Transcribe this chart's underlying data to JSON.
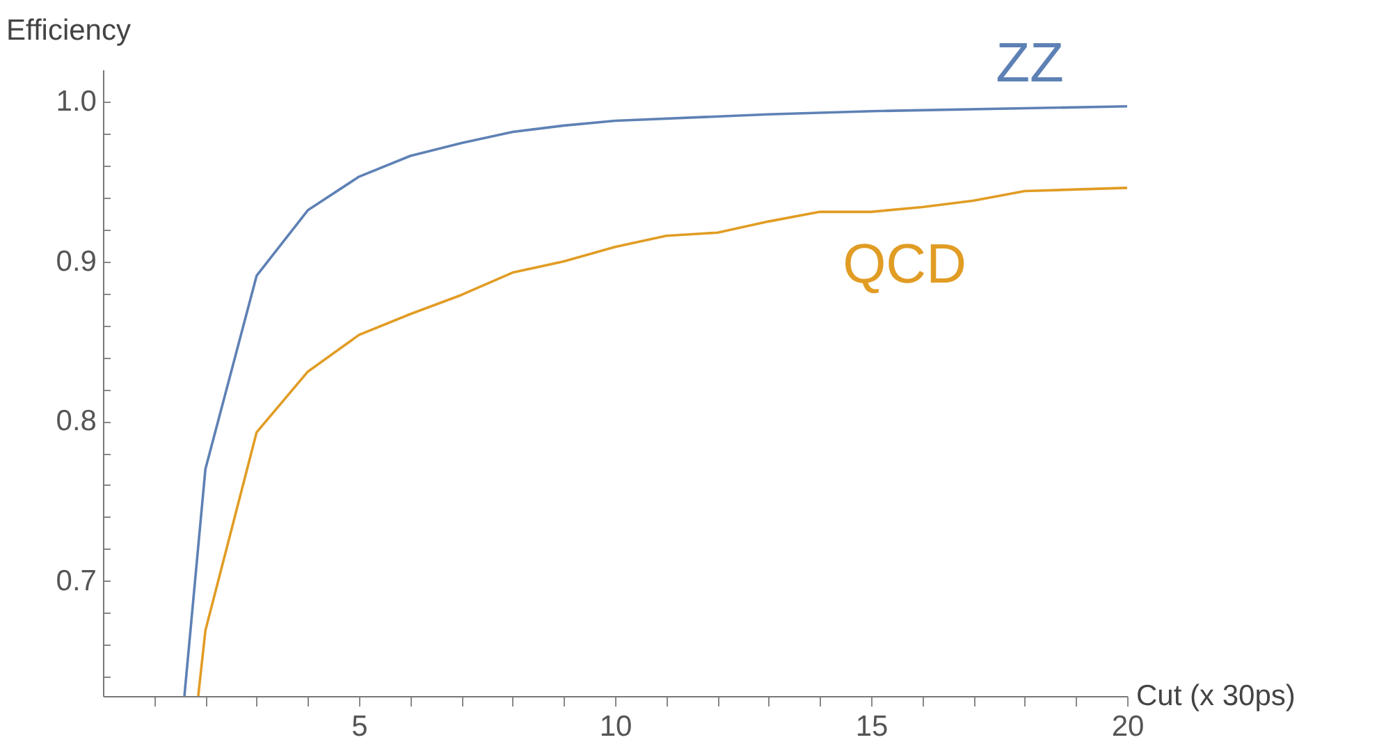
{
  "chart_data": {
    "type": "line",
    "xlabel": "Cut (x 30ps)",
    "ylabel": "Efficiency",
    "xlim": [
      0,
      20
    ],
    "ylim": [
      0.628,
      1.02
    ],
    "xticks": [
      {
        "value": 1,
        "label": null
      },
      {
        "value": 2,
        "label": null
      },
      {
        "value": 3,
        "label": null
      },
      {
        "value": 4,
        "label": null
      },
      5,
      {
        "value": 6,
        "label": null
      },
      {
        "value": 7,
        "label": null
      },
      {
        "value": 8,
        "label": null
      },
      {
        "value": 9,
        "label": null
      },
      10,
      {
        "value": 11,
        "label": null
      },
      {
        "value": 12,
        "label": null
      },
      {
        "value": 13,
        "label": null
      },
      {
        "value": 14,
        "label": null
      },
      15,
      {
        "value": 16,
        "label": null
      },
      {
        "value": 17,
        "label": null
      },
      {
        "value": 18,
        "label": null
      },
      {
        "value": 19,
        "label": null
      },
      20
    ],
    "yticks": [
      {
        "value": 0.64,
        "label": null
      },
      {
        "value": 0.66,
        "label": null
      },
      {
        "value": 0.68,
        "label": null
      },
      {
        "value": 0.7,
        "label": "0.7"
      },
      {
        "value": 0.72,
        "label": null
      },
      {
        "value": 0.74,
        "label": null
      },
      {
        "value": 0.76,
        "label": null
      },
      {
        "value": 0.78,
        "label": null
      },
      {
        "value": 0.8,
        "label": "0.8"
      },
      {
        "value": 0.82,
        "label": null
      },
      {
        "value": 0.84,
        "label": null
      },
      {
        "value": 0.86,
        "label": null
      },
      {
        "value": 0.88,
        "label": null
      },
      {
        "value": 0.9,
        "label": "0.9"
      },
      {
        "value": 0.92,
        "label": null
      },
      {
        "value": 0.94,
        "label": null
      },
      {
        "value": 0.96,
        "label": null
      },
      {
        "value": 0.98,
        "label": null
      },
      {
        "value": 1.0,
        "label": "1.0"
      }
    ],
    "grid": false,
    "legend": false,
    "marker": "none",
    "line_style": "solid",
    "series": [
      {
        "name": "ZZ",
        "color": "#5e81b5",
        "x": [
          1.59,
          2,
          3,
          4,
          5,
          6,
          7,
          8,
          9,
          10,
          13,
          15,
          20
        ],
        "values": [
          0.628,
          0.77,
          0.891,
          0.932,
          0.953,
          0.966,
          0.974,
          0.981,
          0.985,
          0.988,
          0.992,
          0.994,
          0.997
        ]
      },
      {
        "name": "QCD",
        "color": "#e19c24",
        "x": [
          1.86,
          2,
          3,
          4,
          5,
          6,
          7,
          8,
          9,
          10,
          11,
          12,
          13,
          14,
          15,
          16,
          17,
          18,
          20
        ],
        "values": [
          0.628,
          0.669,
          0.793,
          0.831,
          0.854,
          0.867,
          0.879,
          0.893,
          0.9,
          0.909,
          0.916,
          0.918,
          0.925,
          0.931,
          0.931,
          0.934,
          0.938,
          0.944,
          0.946
        ]
      }
    ]
  }
}
